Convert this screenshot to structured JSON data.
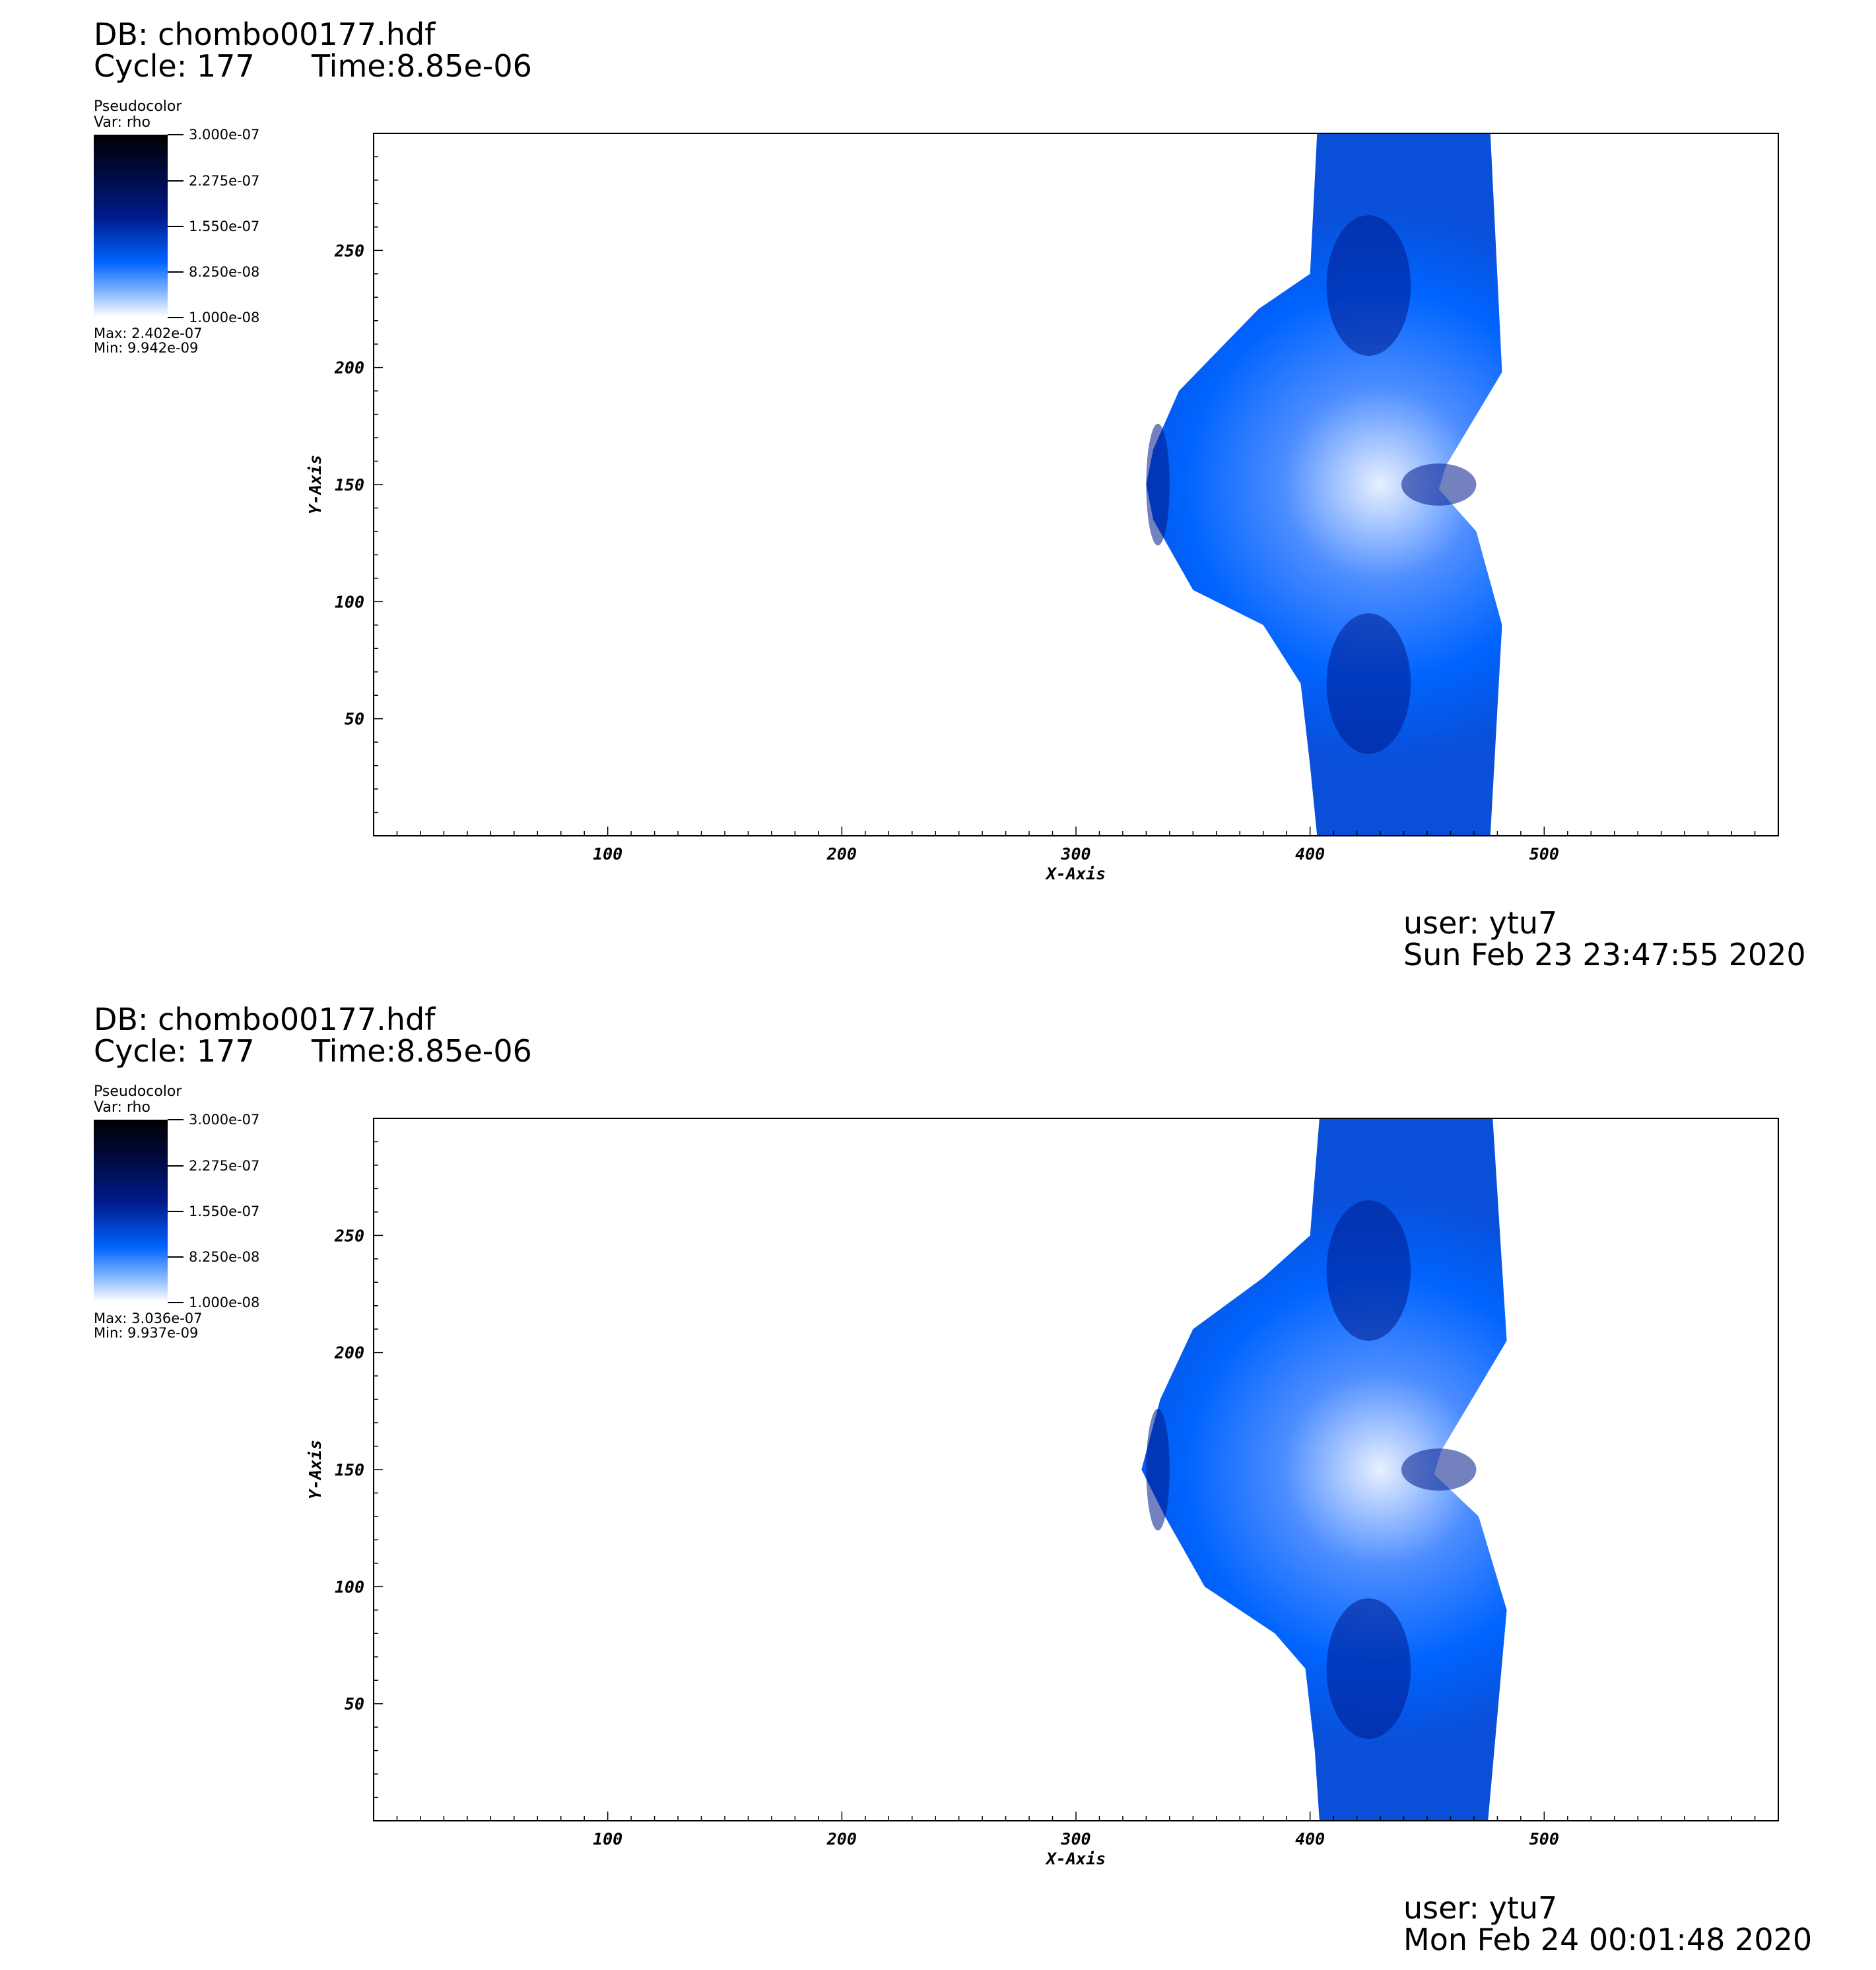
{
  "chart_data": [
    {
      "type": "heatmap",
      "db_label": "DB: chombo00177.hdf",
      "cycle_label": "Cycle: 177",
      "time_label": "Time:8.85e-06",
      "legend": {
        "title": "Pseudocolor",
        "var_label": "Var: rho",
        "ticks": [
          "3.000e-07",
          "2.275e-07",
          "1.550e-07",
          "8.250e-08",
          "1.000e-08"
        ],
        "max_label": "Max:  2.402e-07",
        "min_label": "Min:  9.942e-09"
      },
      "colormap": [
        "#ffffff",
        "#0064ff",
        "#001a8a",
        "#000000"
      ],
      "xlabel": "X-Axis",
      "ylabel": "Y-Axis",
      "xlim": [
        0,
        600
      ],
      "ylim": [
        0,
        300
      ],
      "x_ticks": [
        "100",
        "200",
        "300",
        "400",
        "500"
      ],
      "y_ticks": [
        "50",
        "100",
        "150",
        "200",
        "250"
      ],
      "field_outline": [
        [
          403,
          0
        ],
        [
          477,
          0
        ],
        [
          482,
          90
        ],
        [
          471,
          130
        ],
        [
          455,
          148
        ],
        [
          458,
          158
        ],
        [
          482,
          198
        ],
        [
          477,
          300
        ],
        [
          403,
          300
        ],
        [
          400,
          240
        ],
        [
          378,
          225
        ],
        [
          344,
          190
        ],
        [
          333,
          165
        ],
        [
          330,
          150
        ],
        [
          333,
          135
        ],
        [
          350,
          105
        ],
        [
          380,
          90
        ],
        [
          396,
          65
        ],
        [
          400,
          30
        ]
      ],
      "user_label": "user: ytu7",
      "date_label": "Sun Feb 23 23:47:55 2020"
    },
    {
      "type": "heatmap",
      "db_label": "DB: chombo00177.hdf",
      "cycle_label": "Cycle: 177",
      "time_label": "Time:8.85e-06",
      "legend": {
        "title": "Pseudocolor",
        "var_label": "Var: rho",
        "ticks": [
          "3.000e-07",
          "2.275e-07",
          "1.550e-07",
          "8.250e-08",
          "1.000e-08"
        ],
        "max_label": "Max:  3.036e-07",
        "min_label": "Min:  9.937e-09"
      },
      "colormap": [
        "#ffffff",
        "#0064ff",
        "#001a8a",
        "#000000"
      ],
      "xlabel": "X-Axis",
      "ylabel": "Y-Axis",
      "xlim": [
        0,
        600
      ],
      "ylim": [
        0,
        300
      ],
      "x_ticks": [
        "100",
        "200",
        "300",
        "400",
        "500"
      ],
      "y_ticks": [
        "50",
        "100",
        "150",
        "200",
        "250"
      ],
      "field_outline": [
        [
          404,
          0
        ],
        [
          476,
          0
        ],
        [
          484,
          90
        ],
        [
          472,
          130
        ],
        [
          453,
          148
        ],
        [
          456,
          158
        ],
        [
          484,
          205
        ],
        [
          478,
          300
        ],
        [
          404,
          300
        ],
        [
          400,
          250
        ],
        [
          380,
          232
        ],
        [
          350,
          210
        ],
        [
          336,
          180
        ],
        [
          328,
          150
        ],
        [
          338,
          130
        ],
        [
          355,
          100
        ],
        [
          385,
          80
        ],
        [
          398,
          65
        ],
        [
          402,
          30
        ]
      ],
      "user_label": "user: ytu7",
      "date_label": "Mon Feb 24 00:01:48 2020"
    }
  ]
}
